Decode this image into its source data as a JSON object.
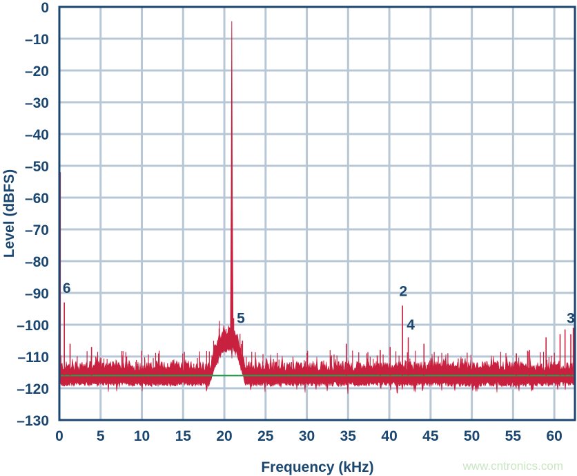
{
  "chart_data": {
    "type": "line",
    "title": "",
    "xlabel": "Frequency (kHz)",
    "ylabel": "Level (dBFS)",
    "xlim": [
      0,
      62.5
    ],
    "ylim": [
      -130,
      0
    ],
    "xticks": [
      0,
      5,
      10,
      15,
      20,
      25,
      30,
      35,
      40,
      45,
      50,
      55,
      60
    ],
    "xtick_labels": [
      "0",
      "5",
      "10",
      "15",
      "20",
      "25",
      "30",
      "35",
      "40",
      "45",
      "50",
      "55",
      "60"
    ],
    "yticks": [
      0,
      -10,
      -20,
      -30,
      -40,
      -50,
      -60,
      -70,
      -80,
      -90,
      -100,
      -110,
      -120,
      -130
    ],
    "ytick_labels": [
      "0",
      "–10",
      "–20",
      "–30",
      "–40",
      "–50",
      "–60",
      "–70",
      "–80",
      "–90",
      "–100",
      "–110",
      "–120",
      "–130"
    ],
    "grid": true,
    "series_color": "#c8203f",
    "reference_line": {
      "level": -116,
      "color": "#1fa04a"
    },
    "noise_floor": -116,
    "hump": {
      "start": 18.2,
      "end": 22.6,
      "level": -107
    },
    "fundamental": {
      "freq": 20.9,
      "level": -4.5
    },
    "peaks": [
      {
        "freq": 0.05,
        "level": -52
      },
      {
        "freq": 0.6,
        "level": -93
      },
      {
        "freq": 41.6,
        "level": -94
      },
      {
        "freq": 42.3,
        "level": -104
      },
      {
        "freq": 62.3,
        "level": -101
      },
      {
        "freq": 61.3,
        "level": -101.5
      },
      {
        "freq": 3.9,
        "level": -107
      },
      {
        "freq": 1.3,
        "level": -106
      },
      {
        "freq": 22.2,
        "level": -105
      },
      {
        "freq": 34.8,
        "level": -106
      },
      {
        "freq": 40.1,
        "level": -107
      },
      {
        "freq": 44.2,
        "level": -106
      },
      {
        "freq": 59.0,
        "level": -104
      },
      {
        "freq": 60.7,
        "level": -103
      },
      {
        "freq": 62.0,
        "level": -103
      },
      {
        "freq": 38.9,
        "level": -108
      },
      {
        "freq": 55.4,
        "level": -109
      },
      {
        "freq": 57.0,
        "level": -108
      }
    ],
    "annotations": [
      {
        "text": "6",
        "freq": 0.9,
        "level": -90
      },
      {
        "text": "5",
        "freq": 22.0,
        "level": -99.5
      },
      {
        "text": "2",
        "freq": 41.7,
        "level": -91
      },
      {
        "text": "4",
        "freq": 42.6,
        "level": -101.5
      },
      {
        "text": "3",
        "freq": 62.0,
        "level": -99.5
      }
    ]
  },
  "watermark": "www.cntronics.com"
}
